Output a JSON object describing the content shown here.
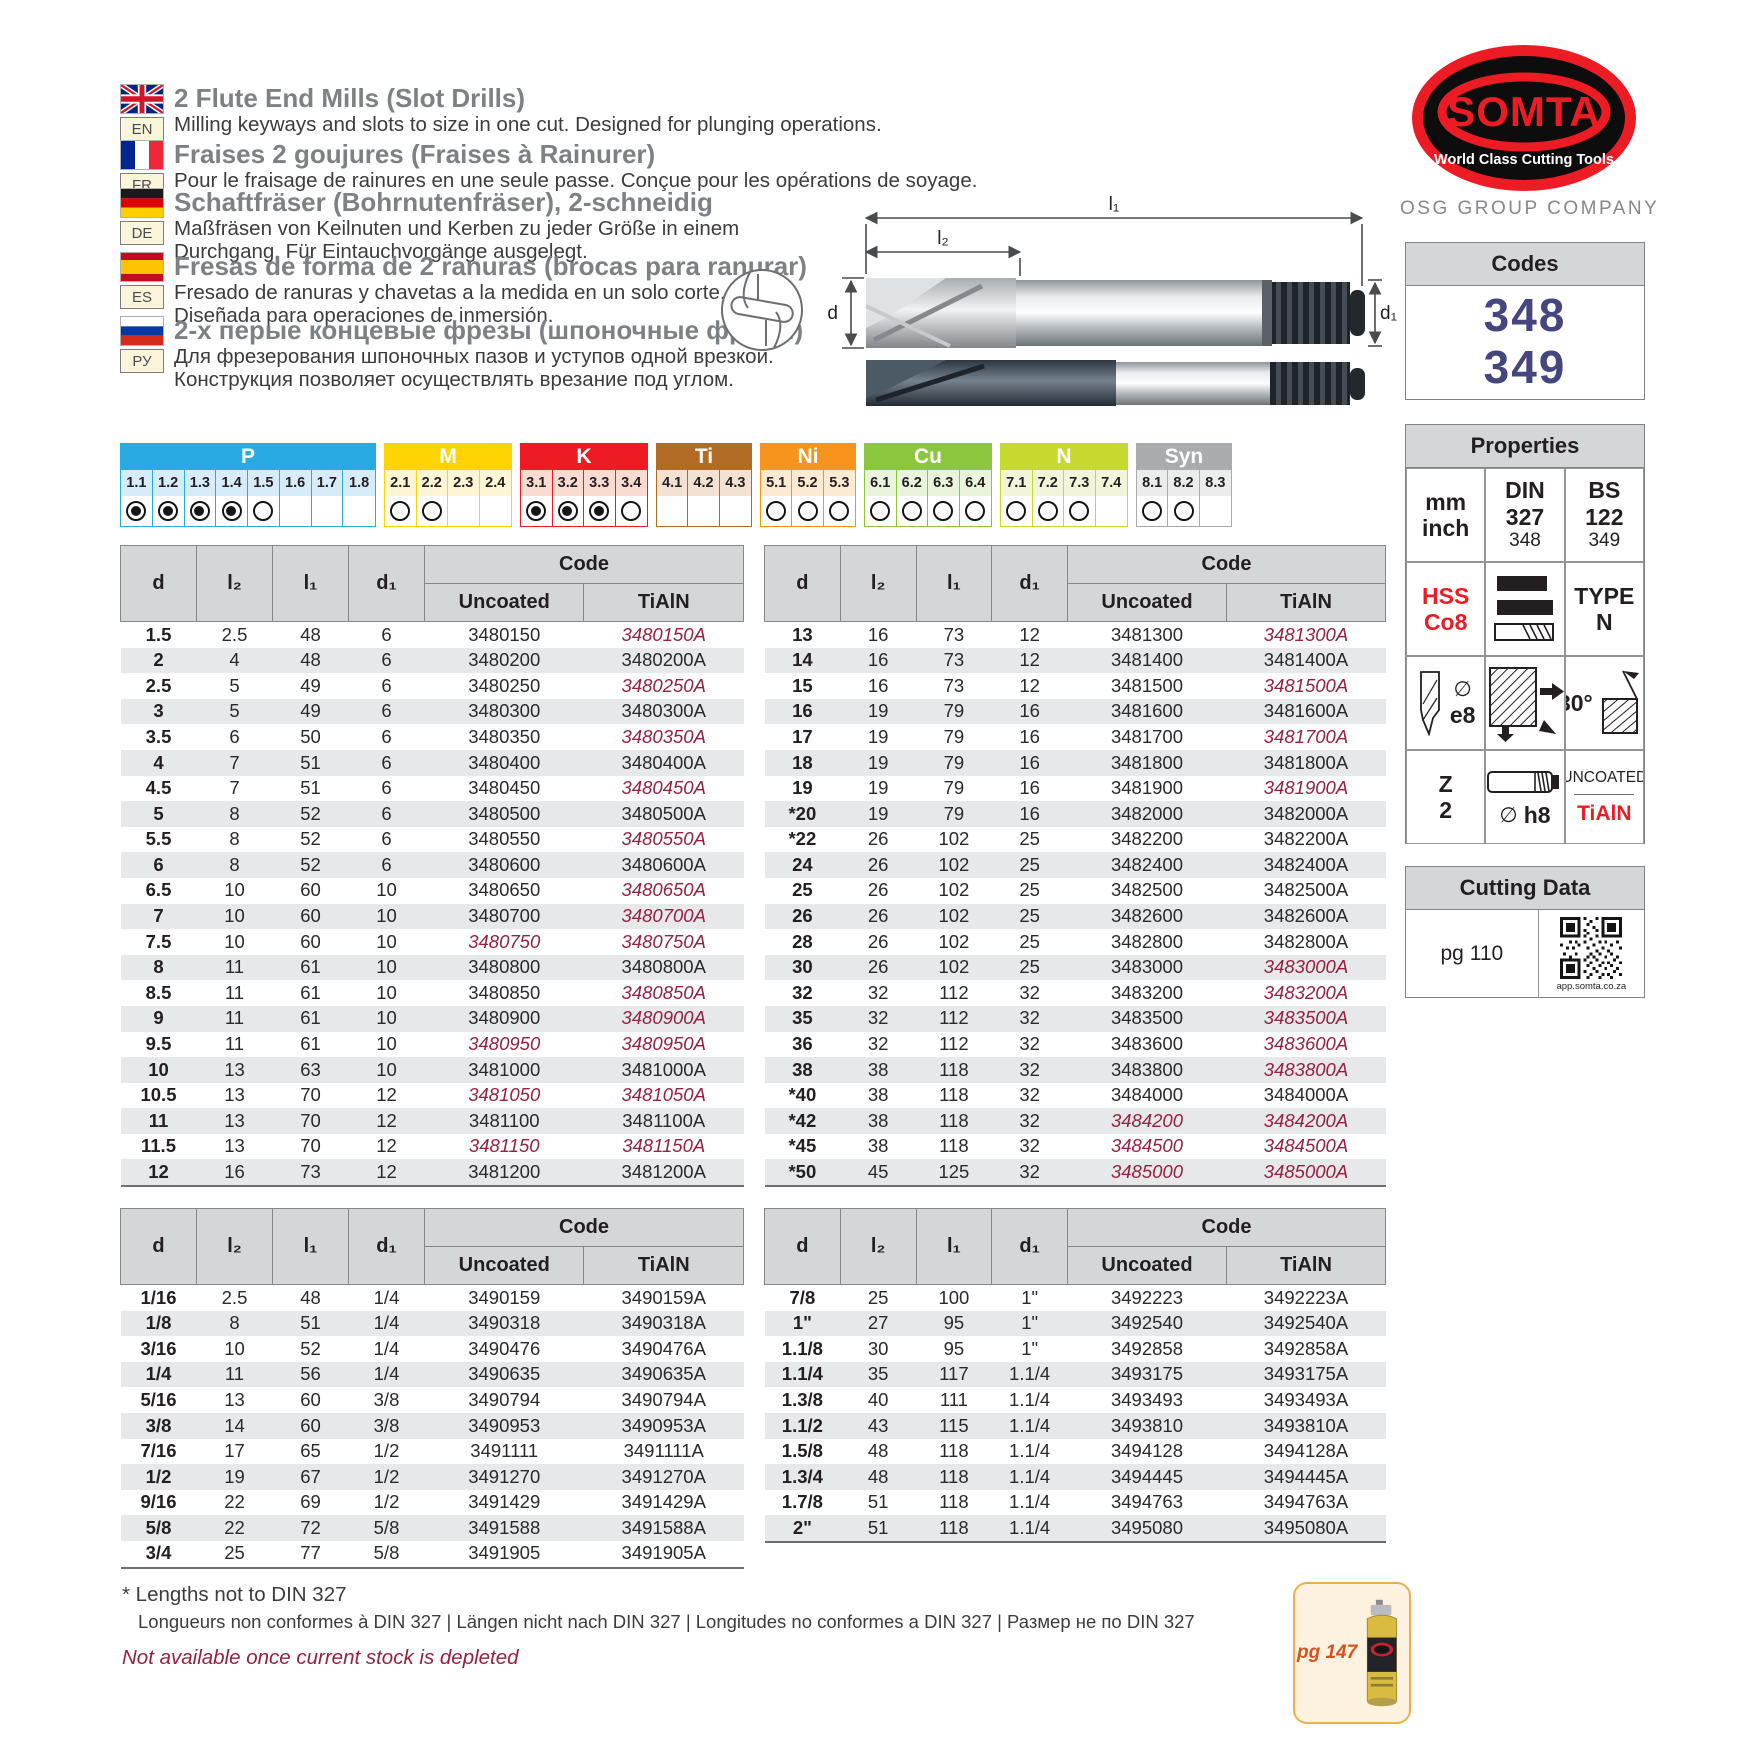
{
  "colors": {
    "accent_red": "#ed1c24",
    "discontinued_red": "#97203f",
    "codes_blue": "#45457f"
  },
  "header": {
    "languages": [
      {
        "code": "EN",
        "flag": "uk",
        "title": "2 Flute End Mills (Slot Drills)",
        "lines": [
          "Milling keyways and slots to size in one cut. Designed for plunging operations."
        ]
      },
      {
        "code": "FR",
        "flag": "fr",
        "title": "Fraises 2 goujures (Fraises à Rainurer)",
        "lines": [
          "Pour le fraisage de rainures en une seule passe. Conçue pour les opérations de soyage."
        ]
      },
      {
        "code": "DE",
        "flag": "de",
        "title": "Schaftfräser (Bohrnutenfräser), 2-schneidig",
        "lines": [
          "Maßfräsen von Keilnuten und Kerben zu jeder Größe in einem",
          "Durchgang. Für Eintauchvorgänge ausgelegt."
        ]
      },
      {
        "code": "ES",
        "flag": "es",
        "title": "Fresas de forma de 2 ranuras (brocas para ranurar)",
        "lines": [
          "Fresado de ranuras y chavetas a la medida en un solo corte.",
          "Diseñada para operaciones de inmersión."
        ]
      },
      {
        "code": "РУ",
        "flag": "ru",
        "title": "2-х перые концевые фрезы (шпоночные фрезы)",
        "lines": [
          "Для фрезерования шпоночных пазов и уступов одной врезкой.",
          "Конструкция позволяет осуществлять врезание под углом."
        ]
      }
    ]
  },
  "brand": {
    "name": "SOMTA",
    "tagline": "World Class Cutting Tools",
    "group": "OSG GROUP COMPANY"
  },
  "codes": {
    "title": "Codes",
    "values": [
      "348",
      "349"
    ]
  },
  "diagram": {
    "labels": {
      "l1": "l₁",
      "l2": "l₂",
      "d": "d",
      "d1": "d₁"
    }
  },
  "materials": [
    {
      "label": "P",
      "color": "#29abe2",
      "tint": "#d7ecf9",
      "cells": [
        [
          "1.1",
          "f"
        ],
        [
          "1.2",
          "f"
        ],
        [
          "1.3",
          "f"
        ],
        [
          "1.4",
          "f"
        ],
        [
          "1.5",
          "e"
        ],
        [
          "1.6",
          ""
        ],
        [
          "1.7",
          ""
        ],
        [
          "1.8",
          ""
        ]
      ]
    },
    {
      "label": "M",
      "color": "#ffd400",
      "tint": "#fdf5d3",
      "cells": [
        [
          "2.1",
          "e"
        ],
        [
          "2.2",
          "e"
        ],
        [
          "2.3",
          ""
        ],
        [
          "2.4",
          ""
        ]
      ]
    },
    {
      "label": "K",
      "color": "#ed1c24",
      "tint": "#fadbd2",
      "cells": [
        [
          "3.1",
          "f"
        ],
        [
          "3.2",
          "f"
        ],
        [
          "3.3",
          "f"
        ],
        [
          "3.4",
          "e"
        ]
      ]
    },
    {
      "label": "Ti",
      "color": "#b26b24",
      "tint": "#f3e2d1",
      "cells": [
        [
          "4.1",
          ""
        ],
        [
          "4.2",
          ""
        ],
        [
          "4.3",
          ""
        ]
      ]
    },
    {
      "label": "Ni",
      "color": "#f7941e",
      "tint": "#fdead2",
      "cells": [
        [
          "5.1",
          "e"
        ],
        [
          "5.2",
          "e"
        ],
        [
          "5.3",
          "e"
        ]
      ]
    },
    {
      "label": "Cu",
      "color": "#8cc63f",
      "tint": "#eaf3db",
      "cells": [
        [
          "6.1",
          "e"
        ],
        [
          "6.2",
          "e"
        ],
        [
          "6.3",
          "e"
        ],
        [
          "6.4",
          "e"
        ]
      ]
    },
    {
      "label": "N",
      "color": "#c6d92f",
      "tint": "#f2f5da",
      "cells": [
        [
          "7.1",
          "e"
        ],
        [
          "7.2",
          "e"
        ],
        [
          "7.3",
          "e"
        ],
        [
          "7.4",
          ""
        ]
      ]
    },
    {
      "label": "Syn",
      "color": "#a9abae",
      "tint": "#ececed",
      "cells": [
        [
          "8.1",
          "e"
        ],
        [
          "8.2",
          "e"
        ],
        [
          "8.3",
          ""
        ]
      ]
    }
  ],
  "table_headers": {
    "d": "d",
    "l2": "l₂",
    "l1": "l₁",
    "d1": "d₁",
    "code": "Code",
    "uncoated": "Uncoated",
    "tialn": "TiAlN"
  },
  "tables": [
    {
      "id": "table-metric-left",
      "rows": [
        [
          "1.5",
          "2.5",
          "48",
          "6",
          "3480150",
          0,
          "3480150A",
          1
        ],
        [
          "2",
          "4",
          "48",
          "6",
          "3480200",
          0,
          "3480200A",
          0
        ],
        [
          "2.5",
          "5",
          "49",
          "6",
          "3480250",
          0,
          "3480250A",
          1
        ],
        [
          "3",
          "5",
          "49",
          "6",
          "3480300",
          0,
          "3480300A",
          0
        ],
        [
          "3.5",
          "6",
          "50",
          "6",
          "3480350",
          0,
          "3480350A",
          1
        ],
        [
          "4",
          "7",
          "51",
          "6",
          "3480400",
          0,
          "3480400A",
          0
        ],
        [
          "4.5",
          "7",
          "51",
          "6",
          "3480450",
          0,
          "3480450A",
          1
        ],
        [
          "5",
          "8",
          "52",
          "6",
          "3480500",
          0,
          "3480500A",
          0
        ],
        [
          "5.5",
          "8",
          "52",
          "6",
          "3480550",
          0,
          "3480550A",
          1
        ],
        [
          "6",
          "8",
          "52",
          "6",
          "3480600",
          0,
          "3480600A",
          0
        ],
        [
          "6.5",
          "10",
          "60",
          "10",
          "3480650",
          0,
          "3480650A",
          1
        ],
        [
          "7",
          "10",
          "60",
          "10",
          "3480700",
          0,
          "3480700A",
          1
        ],
        [
          "7.5",
          "10",
          "60",
          "10",
          "3480750",
          1,
          "3480750A",
          1
        ],
        [
          "8",
          "11",
          "61",
          "10",
          "3480800",
          0,
          "3480800A",
          0
        ],
        [
          "8.5",
          "11",
          "61",
          "10",
          "3480850",
          0,
          "3480850A",
          1
        ],
        [
          "9",
          "11",
          "61",
          "10",
          "3480900",
          0,
          "3480900A",
          1
        ],
        [
          "9.5",
          "11",
          "61",
          "10",
          "3480950",
          1,
          "3480950A",
          1
        ],
        [
          "10",
          "13",
          "63",
          "10",
          "3481000",
          0,
          "3481000A",
          0
        ],
        [
          "10.5",
          "13",
          "70",
          "12",
          "3481050",
          1,
          "3481050A",
          1
        ],
        [
          "11",
          "13",
          "70",
          "12",
          "3481100",
          0,
          "3481100A",
          0
        ],
        [
          "11.5",
          "13",
          "70",
          "12",
          "3481150",
          1,
          "3481150A",
          1
        ],
        [
          "12",
          "16",
          "73",
          "12",
          "3481200",
          0,
          "3481200A",
          0
        ]
      ]
    },
    {
      "id": "table-metric-right",
      "rows": [
        [
          "13",
          "16",
          "73",
          "12",
          "3481300",
          0,
          "3481300A",
          1
        ],
        [
          "14",
          "16",
          "73",
          "12",
          "3481400",
          0,
          "3481400A",
          0
        ],
        [
          "15",
          "16",
          "73",
          "12",
          "3481500",
          0,
          "3481500A",
          1
        ],
        [
          "16",
          "19",
          "79",
          "16",
          "3481600",
          0,
          "3481600A",
          0
        ],
        [
          "17",
          "19",
          "79",
          "16",
          "3481700",
          0,
          "3481700A",
          1
        ],
        [
          "18",
          "19",
          "79",
          "16",
          "3481800",
          0,
          "3481800A",
          0
        ],
        [
          "19",
          "19",
          "79",
          "16",
          "3481900",
          0,
          "3481900A",
          1
        ],
        [
          "*20",
          "19",
          "79",
          "16",
          "3482000",
          0,
          "3482000A",
          0
        ],
        [
          "*22",
          "26",
          "102",
          "25",
          "3482200",
          0,
          "3482200A",
          0
        ],
        [
          "24",
          "26",
          "102",
          "25",
          "3482400",
          0,
          "3482400A",
          0
        ],
        [
          "25",
          "26",
          "102",
          "25",
          "3482500",
          0,
          "3482500A",
          0
        ],
        [
          "26",
          "26",
          "102",
          "25",
          "3482600",
          0,
          "3482600A",
          0
        ],
        [
          "28",
          "26",
          "102",
          "25",
          "3482800",
          0,
          "3482800A",
          0
        ],
        [
          "30",
          "26",
          "102",
          "25",
          "3483000",
          0,
          "3483000A",
          1
        ],
        [
          "32",
          "32",
          "112",
          "32",
          "3483200",
          0,
          "3483200A",
          1
        ],
        [
          "35",
          "32",
          "112",
          "32",
          "3483500",
          0,
          "3483500A",
          1
        ],
        [
          "36",
          "32",
          "112",
          "32",
          "3483600",
          0,
          "3483600A",
          1
        ],
        [
          "38",
          "38",
          "118",
          "32",
          "3483800",
          0,
          "3483800A",
          1
        ],
        [
          "*40",
          "38",
          "118",
          "32",
          "3484000",
          0,
          "3484000A",
          0
        ],
        [
          "*42",
          "38",
          "118",
          "32",
          "3484200",
          1,
          "3484200A",
          1
        ],
        [
          "*45",
          "38",
          "118",
          "32",
          "3484500",
          1,
          "3484500A",
          1
        ],
        [
          "*50",
          "45",
          "125",
          "32",
          "3485000",
          1,
          "3485000A",
          1
        ]
      ]
    },
    {
      "id": "table-inch-left",
      "rows": [
        [
          "1/16",
          "2.5",
          "48",
          "1/4",
          "3490159",
          0,
          "3490159A",
          0
        ],
        [
          "1/8",
          "8",
          "51",
          "1/4",
          "3490318",
          0,
          "3490318A",
          0
        ],
        [
          "3/16",
          "10",
          "52",
          "1/4",
          "3490476",
          0,
          "3490476A",
          0
        ],
        [
          "1/4",
          "11",
          "56",
          "1/4",
          "3490635",
          0,
          "3490635A",
          0
        ],
        [
          "5/16",
          "13",
          "60",
          "3/8",
          "3490794",
          0,
          "3490794A",
          0
        ],
        [
          "3/8",
          "14",
          "60",
          "3/8",
          "3490953",
          0,
          "3490953A",
          0
        ],
        [
          "7/16",
          "17",
          "65",
          "1/2",
          "3491111",
          0,
          "3491111A",
          0
        ],
        [
          "1/2",
          "19",
          "67",
          "1/2",
          "3491270",
          0,
          "3491270A",
          0
        ],
        [
          "9/16",
          "22",
          "69",
          "1/2",
          "3491429",
          0,
          "3491429A",
          0
        ],
        [
          "5/8",
          "22",
          "72",
          "5/8",
          "3491588",
          0,
          "3491588A",
          0
        ],
        [
          "3/4",
          "25",
          "77",
          "5/8",
          "3491905",
          0,
          "3491905A",
          0
        ]
      ]
    },
    {
      "id": "table-inch-right",
      "rows": [
        [
          "7/8",
          "25",
          "100",
          "1\"",
          "3492223",
          0,
          "3492223A",
          0
        ],
        [
          "1\"",
          "27",
          "95",
          "1\"",
          "3492540",
          0,
          "3492540A",
          0
        ],
        [
          "1.1/8",
          "30",
          "95",
          "1\"",
          "3492858",
          0,
          "3492858A",
          0
        ],
        [
          "1.1/4",
          "35",
          "117",
          "1.1/4",
          "3493175",
          0,
          "3493175A",
          0
        ],
        [
          "1.3/8",
          "40",
          "111",
          "1.1/4",
          "3493493",
          0,
          "3493493A",
          0
        ],
        [
          "1.1/2",
          "43",
          "115",
          "1.1/4",
          "3493810",
          0,
          "3493810A",
          0
        ],
        [
          "1.5/8",
          "48",
          "118",
          "1.1/4",
          "3494128",
          0,
          "3494128A",
          0
        ],
        [
          "1.3/4",
          "48",
          "118",
          "1.1/4",
          "3494445",
          0,
          "3494445A",
          0
        ],
        [
          "1.7/8",
          "51",
          "118",
          "1.1/4",
          "3494763",
          0,
          "3494763A",
          0
        ],
        [
          "2\"",
          "51",
          "118",
          "1.1/4",
          "3495080",
          0,
          "3495080A",
          0
        ]
      ]
    }
  ],
  "properties": {
    "title": "Properties",
    "units_top": "mm",
    "units_bottom": "inch",
    "din_label": "DIN",
    "din_value": "327",
    "din_code": "348",
    "bs_label": "BS",
    "bs_value": "122",
    "bs_code": "349",
    "material_line1": "HSS",
    "material_line2": "Co8",
    "type_line1": "TYPE",
    "type_line2": "N",
    "diameter_symbol": "∅",
    "tolerance": "e8",
    "angle": "30°",
    "flutes_label": "Z",
    "flutes_value": "2",
    "shank_tolerance": "h8",
    "coating_top": "UNCOATED",
    "coating_bottom": "TiAlN"
  },
  "cutting_data": {
    "title": "Cutting Data",
    "page_ref": "pg 110",
    "qr_caption": "app.somta.co.za"
  },
  "footer": {
    "note_din": "* Lengths not to DIN 327",
    "note_din_translations": "Longueurs non conformes à DIN 327 | Längen nicht nach DIN 327 | Longitudes no conformes a DIN 327 | Размер не по DIN 327",
    "note_discontinued": "Not available once current stock is depleted",
    "page_ref": "pg 147"
  }
}
